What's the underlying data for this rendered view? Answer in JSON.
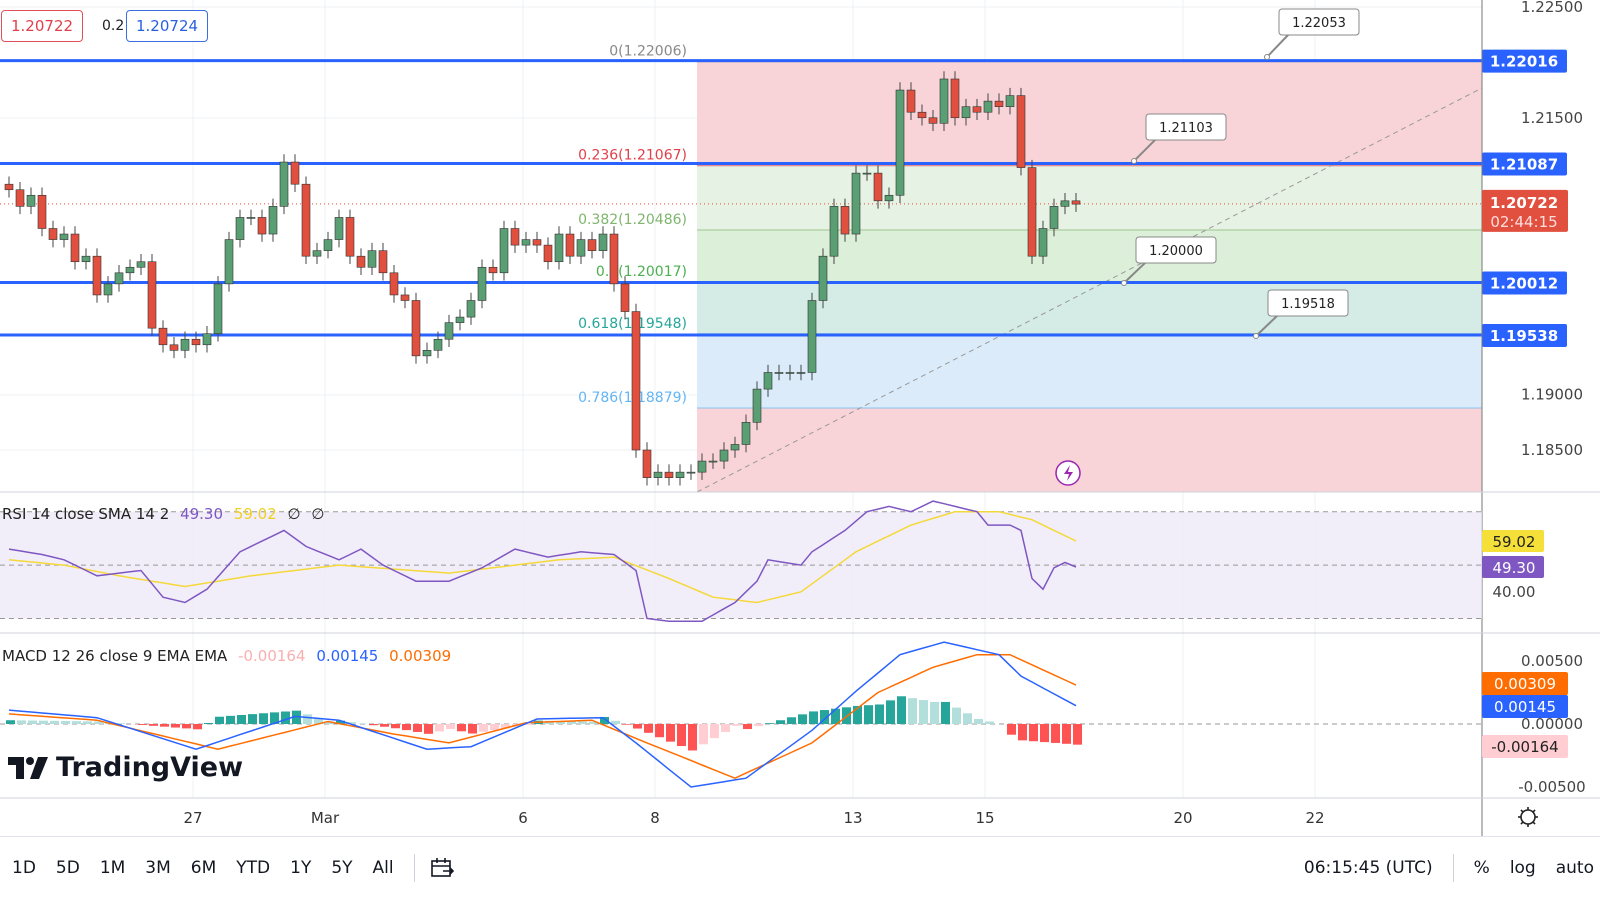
{
  "header": {
    "bid": "1.20722",
    "spread": "0.2",
    "ask": "1.20724"
  },
  "legends": {
    "rsi": {
      "title": "RSI 14 close SMA 14 2",
      "rsi": "49.30",
      "sma": "59.02",
      "extra1": "∅",
      "extra2": "∅"
    },
    "macd": {
      "title": "MACD 12 26 close 9 EMA EMA",
      "hist": "-0.00164",
      "macd": "0.00145",
      "signal": "0.00309"
    }
  },
  "watermark": "TradingView",
  "colors": {
    "up": "#5a9e74",
    "down": "#e14f3e",
    "level": "#2962ff",
    "rsi": "#7e57c2",
    "rsi_sma": "#f5d83a",
    "macd": "#2962ff",
    "signal": "#ff6d00"
  },
  "toolbar": {
    "periods": [
      "1D",
      "5D",
      "1M",
      "3M",
      "6M",
      "YTD",
      "1Y",
      "5Y",
      "All"
    ],
    "time": "06:15:45 (UTC)",
    "percent": "%",
    "log": "log",
    "auto": "auto"
  },
  "chart_data": {
    "type": "candlestick",
    "ylim": [
      1.1783,
      1.2256
    ],
    "y_ticks": [
      "1.22500",
      "1.21500",
      "1.19000",
      "1.18500"
    ],
    "x_ticks": [
      {
        "label": "27",
        "index": 17
      },
      {
        "label": "Mar",
        "index": 29
      },
      {
        "label": "6",
        "index": 47
      },
      {
        "label": "8",
        "index": 59
      },
      {
        "label": "13",
        "index": 77
      },
      {
        "label": "15",
        "index": 89
      },
      {
        "label": "20",
        "index": 107
      },
      {
        "label": "22",
        "index": 119
      }
    ],
    "closes": [
      1.2085,
      1.207,
      1.208,
      1.205,
      1.204,
      1.2045,
      1.202,
      1.2025,
      1.199,
      1.2,
      1.201,
      1.2015,
      1.202,
      1.196,
      1.1945,
      1.194,
      1.195,
      1.1945,
      1.1955,
      1.2,
      1.204,
      1.206,
      1.206,
      1.2045,
      1.207,
      1.211,
      1.209,
      1.2025,
      1.203,
      1.204,
      1.206,
      1.2025,
      1.2015,
      1.203,
      1.201,
      1.199,
      1.1985,
      1.1935,
      1.194,
      1.195,
      1.1965,
      1.197,
      1.1985,
      1.2015,
      1.201,
      1.205,
      1.2035,
      1.204,
      1.2035,
      1.202,
      1.2045,
      1.2025,
      1.204,
      1.203,
      1.2045,
      1.2,
      1.1975,
      1.185,
      1.1825,
      1.183,
      1.1825,
      1.183,
      1.183,
      1.184,
      1.184,
      1.185,
      1.1855,
      1.1875,
      1.1905,
      1.192,
      1.192,
      1.192,
      1.192,
      1.1985,
      1.2025,
      1.207,
      1.2045,
      1.21,
      1.21,
      1.2075,
      1.208,
      1.2175,
      1.2155,
      1.215,
      1.2145,
      1.2185,
      1.215,
      1.216,
      1.2155,
      1.2165,
      1.216,
      1.217,
      1.2105,
      1.2025,
      1.205,
      1.207,
      1.2075,
      1.2072
    ],
    "price_levels": [
      {
        "value": 1.22016,
        "label": "1.22016",
        "callout": "1.22053"
      },
      {
        "value": 1.21087,
        "label": "1.21087",
        "callout": "1.21103"
      },
      {
        "value": 1.20012,
        "label": "1.20012",
        "callout": "1.20000"
      },
      {
        "value": 1.19538,
        "label": "1.19538",
        "callout": "1.19518"
      }
    ],
    "last_price": {
      "value": 1.20722,
      "label": "1.20722",
      "countdown": "02:44:15"
    },
    "fib": {
      "start_index": 63,
      "levels": [
        {
          "ratio": "0",
          "value": 1.22006,
          "label": "0(1.22006)",
          "color": "#888888",
          "fill": "#f8d4d8"
        },
        {
          "ratio": "0.236",
          "value": 1.21067,
          "label": "0.236(1.21067)",
          "color": "#e0404a",
          "fill": "#e6f2e3"
        },
        {
          "ratio": "0.382",
          "value": 1.20486,
          "label": "0.382(1.20486)",
          "color": "#7fb56e",
          "fill": "#dcefd9"
        },
        {
          "ratio": "0.5",
          "value": 1.20017,
          "label": "0.5(1.20017)",
          "color": "#4caf50",
          "fill": "#d4ebe6"
        },
        {
          "ratio": "0.618",
          "value": 1.19548,
          "label": "0.618(1.19548)",
          "color": "#26a69a",
          "fill": "#dcebfa"
        },
        {
          "ratio": "0.786",
          "value": 1.18879,
          "label": "0.786(1.18879)",
          "color": "#64b5f6",
          "fill": "#f8d4d8"
        },
        {
          "ratio": "1",
          "value": 1.1783,
          "label": "",
          "color": "#888888",
          "fill": ""
        }
      ]
    },
    "rsi": {
      "ylim": [
        23,
        85
      ],
      "bands": [
        70,
        50,
        30
      ],
      "tick": "40.00",
      "values": [
        [
          0,
          56
        ],
        [
          3,
          54
        ],
        [
          5,
          52
        ],
        [
          8,
          46
        ],
        [
          12,
          48
        ],
        [
          14,
          38
        ],
        [
          16,
          36
        ],
        [
          18,
          41
        ],
        [
          21,
          55
        ],
        [
          25,
          63
        ],
        [
          27,
          57
        ],
        [
          30,
          52
        ],
        [
          32,
          56
        ],
        [
          34,
          50
        ],
        [
          37,
          44
        ],
        [
          40,
          44
        ],
        [
          43,
          49
        ],
        [
          46,
          56
        ],
        [
          49,
          53
        ],
        [
          52,
          55
        ],
        [
          55,
          54
        ],
        [
          57,
          48
        ],
        [
          58,
          30
        ],
        [
          60,
          29
        ],
        [
          63,
          29
        ],
        [
          66,
          36
        ],
        [
          68,
          44
        ],
        [
          69,
          52
        ],
        [
          72,
          50
        ],
        [
          73,
          55
        ],
        [
          76,
          63
        ],
        [
          78,
          70
        ],
        [
          80,
          72
        ],
        [
          82,
          70
        ],
        [
          84,
          74
        ],
        [
          86,
          72
        ],
        [
          88,
          70
        ],
        [
          89,
          65
        ],
        [
          91,
          65
        ],
        [
          92,
          63
        ],
        [
          93,
          45
        ],
        [
          94,
          41
        ],
        [
          95,
          49
        ],
        [
          96,
          51
        ],
        [
          97,
          49.3
        ]
      ],
      "sma": [
        [
          0,
          52
        ],
        [
          5,
          50
        ],
        [
          10,
          46
        ],
        [
          16,
          42
        ],
        [
          22,
          46
        ],
        [
          30,
          50
        ],
        [
          40,
          47
        ],
        [
          50,
          52
        ],
        [
          55,
          53
        ],
        [
          60,
          45
        ],
        [
          64,
          38
        ],
        [
          68,
          36
        ],
        [
          72,
          40
        ],
        [
          77,
          55
        ],
        [
          82,
          65
        ],
        [
          86,
          70
        ],
        [
          90,
          70
        ],
        [
          93,
          67
        ],
        [
          97,
          59.02
        ]
      ]
    },
    "macd": {
      "ylim": [
        -0.0059,
        0.0078
      ],
      "ticks": [
        "0.00500",
        "0.00000",
        "-0.00500"
      ],
      "macd": [
        [
          0,
          0.0011
        ],
        [
          8,
          0.0005
        ],
        [
          17,
          -0.002
        ],
        [
          26,
          0.0006
        ],
        [
          30,
          0.0003
        ],
        [
          38,
          -0.002
        ],
        [
          42,
          -0.0018
        ],
        [
          48,
          0.0004
        ],
        [
          54,
          0.0005
        ],
        [
          57,
          -0.0015
        ],
        [
          62,
          -0.005
        ],
        [
          67,
          -0.0043
        ],
        [
          73,
          -0.0005
        ],
        [
          77,
          0.0026
        ],
        [
          81,
          0.0055
        ],
        [
          85,
          0.0065
        ],
        [
          90,
          0.0055
        ],
        [
          92,
          0.0038
        ],
        [
          97,
          0.00145
        ]
      ],
      "signal": [
        [
          0,
          0.0008
        ],
        [
          8,
          0.0003
        ],
        [
          19,
          -0.002
        ],
        [
          29,
          0.0002
        ],
        [
          35,
          -0.0008
        ],
        [
          40,
          -0.0015
        ],
        [
          47,
          0.0001
        ],
        [
          53,
          0.0003
        ],
        [
          58,
          -0.0015
        ],
        [
          66,
          -0.0043
        ],
        [
          73,
          -0.0015
        ],
        [
          79,
          0.0025
        ],
        [
          84,
          0.0045
        ],
        [
          88,
          0.0055
        ],
        [
          91,
          0.0055
        ],
        [
          97,
          0.00309
        ]
      ]
    }
  }
}
